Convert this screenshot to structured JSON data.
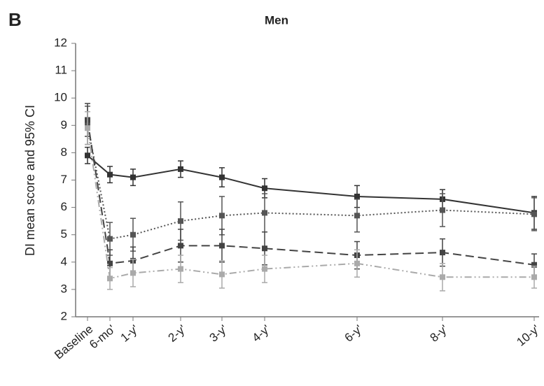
{
  "chart_data": {
    "type": "line",
    "panel_label": "B",
    "title": "Men",
    "y_label": "DI mean score and 95% CI",
    "categories": [
      "Baseline",
      "6-mo'",
      "1-y'",
      "2-y'",
      "3-y'",
      "4-y'",
      "6-y'",
      "8-y'",
      "10-y'"
    ],
    "ylim": [
      2,
      12
    ],
    "yticks": [
      2,
      3,
      4,
      5,
      6,
      7,
      8,
      9,
      10,
      11,
      12
    ],
    "series": [
      {
        "color": "#333333",
        "line_style": "solid",
        "values": [
          7.9,
          7.2,
          7.1,
          7.4,
          7.1,
          6.7,
          6.4,
          6.3,
          5.8
        ],
        "errors": [
          0.3,
          0.3,
          0.3,
          0.3,
          0.35,
          0.35,
          0.4,
          0.35,
          0.6
        ]
      },
      {
        "color": "#555555",
        "line_style": "dotted",
        "values": [
          9.0,
          4.85,
          5.0,
          5.5,
          5.7,
          5.8,
          5.7,
          5.9,
          5.75
        ],
        "errors": [
          0.7,
          0.6,
          0.6,
          0.7,
          0.7,
          0.7,
          0.6,
          0.6,
          0.6
        ]
      },
      {
        "color": "#444444",
        "line_style": "dashed",
        "values": [
          9.2,
          3.95,
          4.05,
          4.6,
          4.6,
          4.5,
          4.25,
          4.35,
          3.9
        ],
        "errors": [
          0.6,
          0.5,
          0.5,
          0.6,
          0.6,
          0.6,
          0.5,
          0.5,
          0.4
        ]
      },
      {
        "color": "#aaaaaa",
        "line_style": "dashdot",
        "values": [
          8.9,
          3.4,
          3.6,
          3.75,
          3.55,
          3.75,
          3.95,
          3.45,
          3.45
        ],
        "errors": [
          0.6,
          0.4,
          0.5,
          0.5,
          0.5,
          0.5,
          0.5,
          0.5,
          0.4
        ]
      }
    ]
  }
}
